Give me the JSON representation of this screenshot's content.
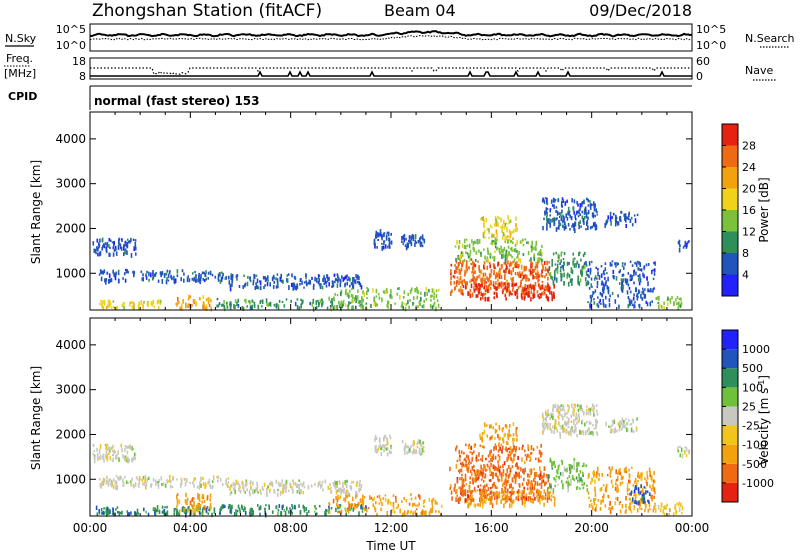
{
  "header": {
    "station_title": "Zhongshan Station (fitACF)",
    "beam": "Beam 04",
    "date": "09/Dec/2018"
  },
  "top_panels": {
    "nsky_label": "N.Sky",
    "nsky_tick_high": "10^5",
    "nsky_tick_low": "10^0",
    "nsearch_label": "N.Search",
    "nsearch_tick_high": "10^5",
    "nsearch_tick_low": "10^0",
    "freq_label": "Freq.",
    "freq_unit": "[MHz]",
    "freq_tick_high": "18",
    "freq_tick_low": "8",
    "nave_label": "Nave",
    "nave_tick_high": "60",
    "nave_tick_low": "0",
    "cpid_label": "CPID",
    "cpid_text": "normal (fast stereo) 153"
  },
  "chart_data": [
    {
      "type": "heatmap",
      "name": "power",
      "ylabel": "Slant Range [km]",
      "xlabel": "",
      "y_ticks": [
        "1000",
        "2000",
        "3000",
        "4000"
      ],
      "ylim": [
        180,
        4600
      ],
      "xlim_hours": [
        0,
        24
      ],
      "colorbar_label": "Power [dB]",
      "colorbar_ticks": [
        "4",
        "8",
        "12",
        "16",
        "20",
        "24",
        "28"
      ],
      "colorbar_colors": [
        "#2222ff",
        "#2255bb",
        "#2f8f5a",
        "#79c23a",
        "#f1d21a",
        "#f2a20f",
        "#f06a14",
        "#e52312"
      ],
      "regions": [
        {
          "t0": 0.1,
          "t1": 1.8,
          "r0": 1450,
          "r1": 1800,
          "c": 1,
          "d": 0.6
        },
        {
          "t0": 0.3,
          "t1": 5.5,
          "r0": 850,
          "r1": 1100,
          "c": 1,
          "d": 0.45
        },
        {
          "t0": 0.2,
          "t1": 2.8,
          "r0": 250,
          "r1": 420,
          "c": 4,
          "d": 0.6
        },
        {
          "t0": 3.4,
          "t1": 4.8,
          "r0": 250,
          "r1": 520,
          "c": 5,
          "d": 0.5
        },
        {
          "t0": 5.5,
          "t1": 10.8,
          "r0": 700,
          "r1": 1000,
          "c": 1,
          "d": 0.5
        },
        {
          "t0": 5.0,
          "t1": 11.0,
          "r0": 250,
          "r1": 450,
          "c": 2,
          "d": 0.45
        },
        {
          "t0": 11.3,
          "t1": 12.0,
          "r0": 1600,
          "r1": 2000,
          "c": 1,
          "d": 0.7
        },
        {
          "t0": 12.4,
          "t1": 13.3,
          "r0": 1600,
          "r1": 1900,
          "c": 1,
          "d": 0.7
        },
        {
          "t0": 14.3,
          "t1": 18.3,
          "r0": 550,
          "r1": 1300,
          "c": 6,
          "d": 0.55
        },
        {
          "t0": 15.0,
          "t1": 18.5,
          "r0": 450,
          "r1": 800,
          "c": 7,
          "d": 0.4
        },
        {
          "t0": 14.5,
          "t1": 18.0,
          "r0": 1300,
          "r1": 1800,
          "c": 3,
          "d": 0.4
        },
        {
          "t0": 15.5,
          "t1": 17.0,
          "r0": 1800,
          "r1": 2300,
          "c": 4,
          "d": 0.4
        },
        {
          "t0": 18.0,
          "t1": 20.2,
          "r0": 2000,
          "r1": 2700,
          "c": 1,
          "d": 0.5
        },
        {
          "t0": 20.5,
          "t1": 21.8,
          "r0": 2100,
          "r1": 2400,
          "c": 1,
          "d": 0.55
        },
        {
          "t0": 18.2,
          "t1": 19.8,
          "r0": 800,
          "r1": 1500,
          "c": 2,
          "d": 0.4
        },
        {
          "t0": 19.8,
          "t1": 22.5,
          "r0": 300,
          "r1": 1300,
          "c": 1,
          "d": 0.35
        },
        {
          "t0": 22.5,
          "t1": 23.6,
          "r0": 250,
          "r1": 500,
          "c": 3,
          "d": 0.5
        },
        {
          "t0": 23.4,
          "t1": 23.9,
          "r0": 1550,
          "r1": 1750,
          "c": 1,
          "d": 0.6
        },
        {
          "t0": 9.5,
          "t1": 14.0,
          "r0": 250,
          "r1": 700,
          "c": 3,
          "d": 0.3
        }
      ]
    },
    {
      "type": "heatmap",
      "name": "velocity",
      "ylabel": "Slant Range [km]",
      "xlabel": "Time UT",
      "x_ticks": [
        "00:00",
        "04:00",
        "08:00",
        "12:00",
        "16:00",
        "20:00",
        "00:00"
      ],
      "y_ticks": [
        "1000",
        "2000",
        "3000",
        "4000"
      ],
      "ylim": [
        180,
        4600
      ],
      "xlim_hours": [
        0,
        24
      ],
      "colorbar_label": "Velocity [m s",
      "colorbar_label_exp": "-1",
      "colorbar_ticks": [
        "-1000",
        "-500",
        "-100",
        "-25",
        "25",
        "100",
        "500",
        "1000"
      ],
      "colorbar_colors": [
        "#e52312",
        "#f06a14",
        "#f2a20f",
        "#f1c51a",
        "#c8c8c0",
        "#6fc03a",
        "#2f8f5a",
        "#2255bb",
        "#2222ff"
      ],
      "regions": [
        {
          "t0": 0.1,
          "t1": 1.8,
          "r0": 1450,
          "r1": 1800,
          "c": 4,
          "d": 0.6
        },
        {
          "t0": 0.3,
          "t1": 5.5,
          "r0": 850,
          "r1": 1100,
          "c": 4,
          "d": 0.45
        },
        {
          "t0": 0.2,
          "t1": 5.0,
          "r0": 250,
          "r1": 420,
          "c": 6,
          "d": 0.6
        },
        {
          "t0": 3.4,
          "t1": 4.8,
          "r0": 300,
          "r1": 700,
          "c": 2,
          "d": 0.45
        },
        {
          "t0": 5.5,
          "t1": 10.8,
          "r0": 700,
          "r1": 1000,
          "c": 4,
          "d": 0.5
        },
        {
          "t0": 5.0,
          "t1": 11.0,
          "r0": 250,
          "r1": 450,
          "c": 6,
          "d": 0.45
        },
        {
          "t0": 11.3,
          "t1": 12.0,
          "r0": 1600,
          "r1": 2000,
          "c": 4,
          "d": 0.7
        },
        {
          "t0": 12.4,
          "t1": 13.3,
          "r0": 1600,
          "r1": 1900,
          "c": 4,
          "d": 0.7
        },
        {
          "t0": 14.3,
          "t1": 18.3,
          "r0": 550,
          "r1": 1300,
          "c": 1,
          "d": 0.55
        },
        {
          "t0": 15.0,
          "t1": 18.5,
          "r0": 450,
          "r1": 800,
          "c": 2,
          "d": 0.4
        },
        {
          "t0": 14.5,
          "t1": 18.0,
          "r0": 1300,
          "r1": 1800,
          "c": 1,
          "d": 0.4
        },
        {
          "t0": 15.5,
          "t1": 17.0,
          "r0": 1800,
          "r1": 2300,
          "c": 2,
          "d": 0.35
        },
        {
          "t0": 18.0,
          "t1": 20.2,
          "r0": 2000,
          "r1": 2700,
          "c": 4,
          "d": 0.55
        },
        {
          "t0": 20.5,
          "t1": 21.8,
          "r0": 2100,
          "r1": 2400,
          "c": 4,
          "d": 0.55
        },
        {
          "t0": 18.2,
          "t1": 19.8,
          "r0": 800,
          "r1": 1500,
          "c": 5,
          "d": 0.35
        },
        {
          "t0": 19.8,
          "t1": 22.5,
          "r0": 300,
          "r1": 1300,
          "c": 2,
          "d": 0.35
        },
        {
          "t0": 21.5,
          "t1": 22.3,
          "r0": 500,
          "r1": 900,
          "c": 7,
          "d": 0.4
        },
        {
          "t0": 22.5,
          "t1": 23.6,
          "r0": 250,
          "r1": 500,
          "c": 3,
          "d": 0.5
        },
        {
          "t0": 23.4,
          "t1": 23.9,
          "r0": 1550,
          "r1": 1750,
          "c": 4,
          "d": 0.6
        },
        {
          "t0": 9.5,
          "t1": 14.0,
          "r0": 250,
          "r1": 700,
          "c": 2,
          "d": 0.3
        }
      ]
    }
  ]
}
